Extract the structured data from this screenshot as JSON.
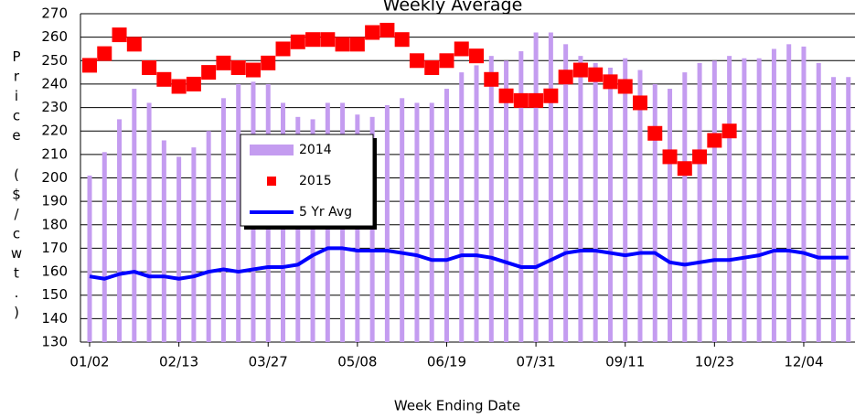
{
  "chart_data": {
    "type": "bar",
    "title": "Weekly Average",
    "y_label": "Price ($/cwt.)",
    "x_label": "Week Ending Date",
    "categories": [
      "01/02",
      null,
      null,
      null,
      null,
      null,
      "02/13",
      null,
      null,
      null,
      null,
      null,
      "03/27",
      null,
      null,
      null,
      null,
      null,
      "05/08",
      null,
      null,
      null,
      null,
      null,
      "06/19",
      null,
      null,
      null,
      null,
      null,
      "07/31",
      null,
      null,
      null,
      null,
      null,
      "09/11",
      null,
      null,
      null,
      null,
      null,
      "10/23",
      null,
      null,
      null,
      null,
      null,
      "12/04",
      null,
      null,
      null
    ],
    "series": [
      {
        "name": "2014",
        "type": "bar",
        "color": "#c49cf0",
        "values": [
          201,
          211,
          225,
          238,
          232,
          216,
          209,
          213,
          220,
          234,
          240,
          241,
          240,
          232,
          226,
          225,
          232,
          232,
          227,
          226,
          231,
          234,
          232,
          232,
          238,
          245,
          248,
          252,
          250,
          254,
          262,
          262,
          257,
          252,
          249,
          247,
          251,
          246,
          240,
          238,
          245,
          249,
          250,
          252,
          251,
          251,
          255,
          257,
          256,
          249,
          243,
          243
        ]
      },
      {
        "name": "2015",
        "type": "scatter",
        "color": "#ff0000",
        "values": [
          248,
          253,
          261,
          257,
          247,
          242,
          239,
          240,
          245,
          249,
          247,
          246,
          249,
          255,
          258,
          259,
          259,
          257,
          257,
          262,
          263,
          259,
          250,
          247,
          250,
          255,
          252,
          242,
          235,
          233,
          233,
          235,
          243,
          246,
          244,
          241,
          239,
          232,
          219,
          209,
          204,
          209,
          216,
          220,
          null,
          null,
          null,
          null,
          null,
          null,
          null,
          null
        ]
      },
      {
        "name": "5 Yr Avg",
        "type": "line",
        "color": "#0000ff",
        "values": [
          158,
          157,
          159,
          160,
          158,
          158,
          157,
          158,
          160,
          161,
          160,
          161,
          162,
          162,
          163,
          167,
          170,
          170,
          169,
          169,
          169,
          168,
          167,
          165,
          165,
          167,
          167,
          166,
          164,
          162,
          162,
          165,
          168,
          169,
          169,
          168,
          167,
          168,
          168,
          164,
          163,
          164,
          165,
          165,
          166,
          167,
          169,
          169,
          168,
          166,
          166,
          166
        ]
      }
    ],
    "ylim": [
      130,
      270
    ],
    "yticks": [
      130,
      140,
      150,
      160,
      170,
      180,
      190,
      200,
      210,
      220,
      230,
      240,
      250,
      260,
      270
    ],
    "grid": true,
    "legend": "center-left"
  }
}
